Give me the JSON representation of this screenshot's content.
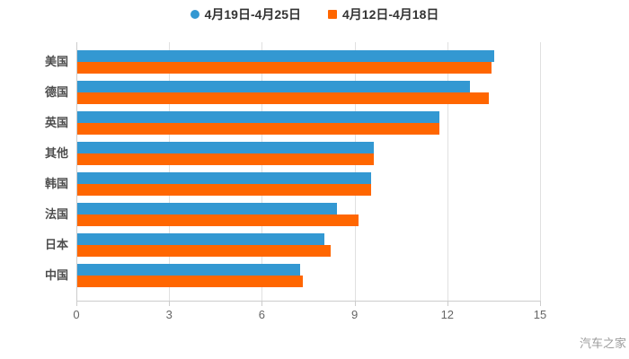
{
  "watermark": "汽车之家",
  "chart_data": {
    "type": "bar",
    "orientation": "horizontal",
    "title": "",
    "xlabel": "",
    "ylabel": "",
    "grid": true,
    "legend_position": "top",
    "xlim": [
      0,
      15
    ],
    "xticks": [
      0,
      3,
      6,
      9,
      12,
      15
    ],
    "categories": [
      "美国",
      "德国",
      "英国",
      "其他",
      "韩国",
      "法国",
      "日本",
      "中国"
    ],
    "series": [
      {
        "name": "4月19日-4月25日",
        "color": "#3398d2",
        "marker": "circle",
        "values": [
          13.5,
          12.7,
          11.7,
          9.6,
          9.5,
          8.4,
          8.0,
          7.2
        ]
      },
      {
        "name": "4月12日-4月18日",
        "color": "#ff6600",
        "marker": "square",
        "values": [
          13.4,
          13.3,
          11.7,
          9.6,
          9.5,
          9.1,
          8.2,
          7.3
        ]
      }
    ]
  }
}
